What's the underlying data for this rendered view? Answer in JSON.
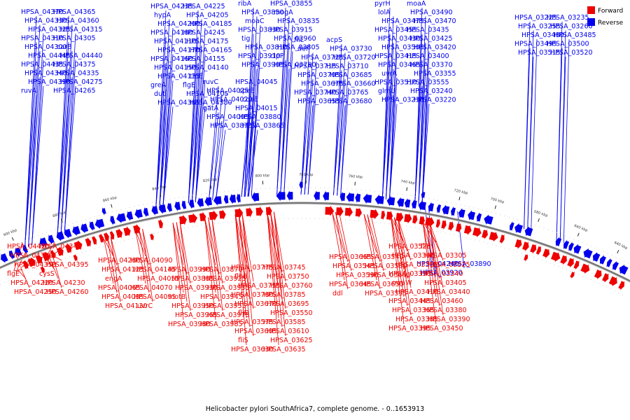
{
  "caption": "Helicobacter pylori SouthAfrica7, complete genome. - 0..1653913",
  "legend": [
    {
      "label": "Forward",
      "color": "#ee0000"
    },
    {
      "label": "Reverse",
      "color": "#0000ee"
    }
  ],
  "colors": {
    "forward": "#ee0000",
    "reverse": "#0000ee",
    "backbone": "#777777"
  },
  "ticks": [
    "640 kbp",
    "660 kbp",
    "680 kbp",
    "700 kbp",
    "720 kbp",
    "740 kbp",
    "760 kbp",
    "780 kbp",
    "800 kbp",
    "820 kbp",
    "840 kbp",
    "860 kbp",
    "880 kbp",
    "900 kbp"
  ],
  "reverse_labels": [
    "HPSA_04235",
    "HPSA_04225",
    "hypA",
    "HPSA_04205",
    "HPSA_04200",
    "HPSA_04185",
    "HPSA_04180",
    "HPSA_04245",
    "HPSA_04110",
    "HPSA_04175",
    "HPSA_04170",
    "HPSA_04165",
    "HPSA_04160",
    "HPSA_04155",
    "HPSA_04150",
    "HPSA_04140",
    "HPSA_04135",
    "thiE",
    "greA",
    "flgE",
    "dut",
    "HPSA_04105",
    "HPSA_04385",
    "HPSA_04380",
    "HPSA_04370",
    "HPSA_04365",
    "HPSA_04330",
    "HPSA_04360",
    "HPSA_04325",
    "HPSA_04315",
    "HPSA_04310",
    "HPSA_04305",
    "HPSA_04300",
    "carB",
    "HPSA_04445",
    "HPSA_04440",
    "HPSA_04435",
    "HPSA_04375",
    "HPSA_04340",
    "HPSA_04335",
    "HPSA_04390",
    "HPSA_04275",
    "ruvA",
    "HPSA_04265",
    "ruvC",
    "HPSA_04045",
    "HPSA_04025",
    "speE",
    "HPSA_04020",
    "coaE",
    "gatA",
    "HPSA_04015",
    "HPSA_04005",
    "HPSA_03880",
    "HPSA_03875",
    "HPSA_03865",
    "ribA",
    "HPSA_03855",
    "HPSA_03850",
    "mogA",
    "moaC",
    "HPSA_03835",
    "HPSA_03830",
    "HPSA_03915",
    "tig",
    "HPSA_03960",
    "HPSA_03810",
    "HPSA_03805",
    "HPSA_03910",
    "clpP",
    "HPSA_03905",
    "HPSA_03790",
    "fliL",
    "acpS",
    "def",
    "HPSA_03730",
    "HPSA_03725",
    "HPSA_03720",
    "HPSA_03715",
    "HPSA_03710",
    "HPSA_03705",
    "HPSA_03685",
    "HPSA_03675",
    "HPSA_03660",
    "HPSA_03740",
    "HPSA_03765",
    "HPSA_03655",
    "HPSA_03680",
    "pyrH",
    "moaA",
    "lolA",
    "HPSA_03490",
    "HPSA_03475",
    "HPSA_03470",
    "HPSA_03455",
    "HPSA_03435",
    "HPSA_03430",
    "HPSA_03425",
    "HPSA_03505",
    "HPSA_03420",
    "HPSA_03415",
    "HPSA_03400",
    "HPSA_03465",
    "HPSA_03370",
    "uvrA",
    "HPSA_03355",
    "HPSA_03510",
    "HPSA_03555",
    "glmU",
    "HPSA_03240",
    "HPSA_03230",
    "HPSA_03220",
    "HPSA_03225",
    "HPSA_03235",
    "HPSA_03255",
    "HPSA_03260",
    "HPSA_03480",
    "HPSA_03485",
    "HPSA_03495",
    "HPSA_03500",
    "HPSA_03515",
    "HPSA_03520",
    "HPSA_04240",
    "HPSA_03890",
    "HPSA_03920"
  ],
  "forward_labels": [
    "HPSA_04420",
    "HPSA_04345",
    "HPSA_04320",
    "flgD",
    "HPSA_04350",
    "HPSA_04395",
    "flgE",
    "cysS",
    "HPSA_04220",
    "HPSA_04230",
    "HPSA_04250",
    "HPSA_04260",
    "HPSA_04280",
    "HPSA_04090",
    "HPSA_04125",
    "HPSA_04145",
    "engA",
    "HPSA_04055",
    "HPSA_04065",
    "HPSA_04070",
    "HPSA_04085",
    "HPSA_04095",
    "HPSA_04130",
    "uvrC",
    "HPSA_03990",
    "HPSA_03870",
    "HPSA_03885",
    "HPSA_03925",
    "HPSA_03930",
    "HPSA_03935",
    "motB",
    "HPSA_03945",
    "HPSA_03950",
    "HPSA_03955",
    "HPSA_03965",
    "HPSA_03975",
    "HPSA_03980",
    "HPSA_03985",
    "HPSA_03775",
    "HPSA_03745",
    "flhB",
    "HPSA_03750",
    "HPSA_03755",
    "HPSA_03760",
    "HPSA_03780",
    "HPSA_03785",
    "HPSA_03670",
    "HPSA_03695",
    "fliD",
    "HPSA_03550",
    "HPSA_03575",
    "HPSA_03585",
    "HPSA_03605",
    "HPSA_03610",
    "fliS",
    "HPSA_03625",
    "HPSA_03630",
    "HPSA_03635",
    "HPSA_03665",
    "HPSA_03540",
    "HPSA_03545",
    "HPSA_03580",
    "HPSA_03590",
    "HPSA_03640",
    "HPSA_03645",
    "HPSA_03650",
    "ddl",
    "HPSA_03535",
    "HPSA_03525",
    "fliP",
    "HPSA_03300",
    "HPSA_03305",
    "HPSA_03315",
    "HPSA_03325",
    "HPSA_03330",
    "HPSA_03340",
    "mraW",
    "HPSA_03405",
    "HPSA_03410",
    "HPSA_03440",
    "HPSA_03445",
    "HPSA_03460",
    "HPSA_03365",
    "HPSA_03380",
    "HPSA_03385",
    "HPSA_03390",
    "HPSA_03395",
    "HPSA_03450"
  ]
}
